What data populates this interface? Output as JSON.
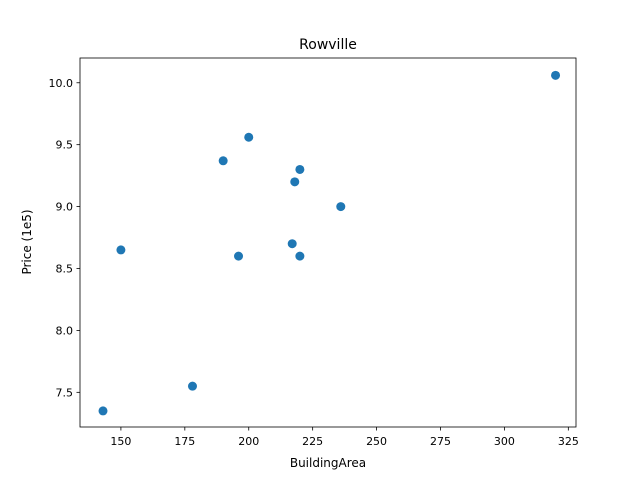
{
  "chart_data": {
    "type": "scatter",
    "title": "Rowville",
    "xlabel": "BuildingArea",
    "ylabel": "Price (1e5)",
    "xlim": [
      134,
      328
    ],
    "ylim": [
      7.22,
      10.2
    ],
    "xticks": [
      150,
      175,
      200,
      225,
      250,
      275,
      300,
      325
    ],
    "yticks": [
      7.5,
      8.0,
      8.5,
      9.0,
      9.5,
      10.0
    ],
    "xtick_labels": [
      "150",
      "175",
      "200",
      "225",
      "250",
      "275",
      "300",
      "325"
    ],
    "ytick_labels": [
      "7.5",
      "8.0",
      "8.5",
      "9.0",
      "9.5",
      "10.0"
    ],
    "grid": false,
    "marker_color": "#1f77b4",
    "points": [
      {
        "x": 143,
        "y": 7.35
      },
      {
        "x": 150,
        "y": 8.65
      },
      {
        "x": 178,
        "y": 7.55
      },
      {
        "x": 190,
        "y": 9.37
      },
      {
        "x": 196,
        "y": 8.6
      },
      {
        "x": 200,
        "y": 9.56
      },
      {
        "x": 217,
        "y": 8.7
      },
      {
        "x": 218,
        "y": 9.2
      },
      {
        "x": 220,
        "y": 9.3
      },
      {
        "x": 220,
        "y": 8.6
      },
      {
        "x": 236,
        "y": 9.0
      },
      {
        "x": 320,
        "y": 10.06
      }
    ]
  }
}
